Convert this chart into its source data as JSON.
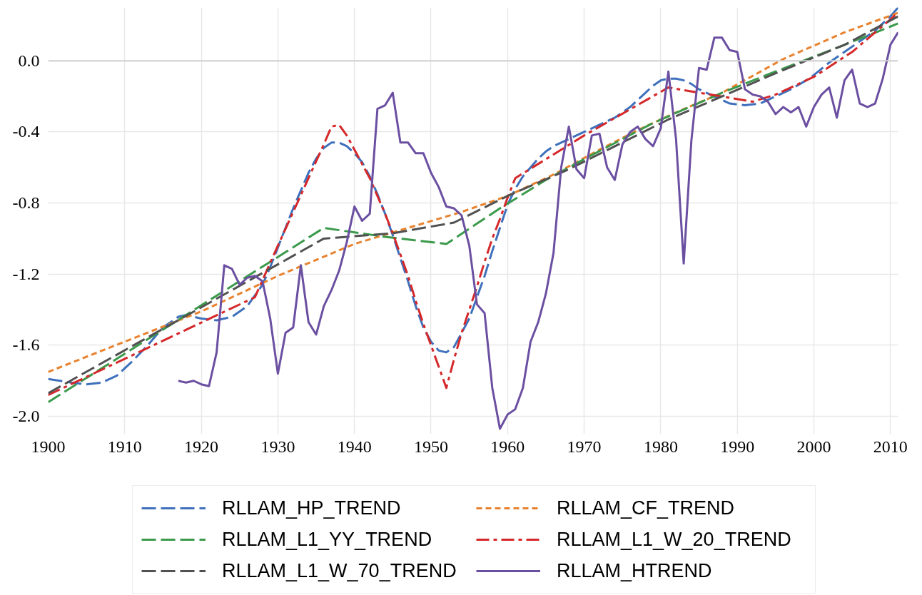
{
  "chart_data": {
    "type": "line",
    "xlim": [
      1900,
      2011
    ],
    "xticks": [
      1900,
      1910,
      1920,
      1930,
      1940,
      1950,
      1960,
      1970,
      1980,
      1990,
      2000,
      2010
    ],
    "ylim": [
      -2.1,
      0.3
    ],
    "yticks": [
      {
        "value": -2.0,
        "label": "-2.0"
      },
      -1.6,
      -1.2,
      -0.8,
      -0.4,
      {
        "value": 0,
        "label": "0.0"
      }
    ],
    "grid": true,
    "legend": "bottom",
    "ref_lines": [
      {
        "axis": "y",
        "value": 0,
        "color": "#d0d0d0"
      }
    ],
    "series": [
      {
        "name": "RLLAM_HP_TREND",
        "color": "#3f70bc",
        "line_style": "dashed",
        "x": [
          1900,
          1903,
          1905,
          1907,
          1909,
          1911,
          1913,
          1915,
          1917,
          1918,
          1920,
          1922,
          1924,
          1926,
          1928,
          1929,
          1930,
          1931,
          1932,
          1933,
          1934,
          1935,
          1936,
          1937,
          1938,
          1939,
          1940,
          1941,
          1942,
          1943,
          1944,
          1945,
          1946,
          1947,
          1948,
          1949,
          1950,
          1951,
          1952,
          1953,
          1954,
          1955,
          1956,
          1957,
          1958,
          1959,
          1960,
          1961,
          1962,
          1963,
          1964,
          1965,
          1966,
          1967,
          1968,
          1970,
          1972,
          1974,
          1976,
          1978,
          1979,
          1980,
          1981,
          1982,
          1983,
          1984,
          1985,
          1987,
          1989,
          1991,
          1993,
          1995,
          1997,
          1999,
          2000,
          2002,
          2004,
          2006,
          2008,
          2010,
          2011
        ],
        "values": [
          -1.79,
          -1.81,
          -1.82,
          -1.81,
          -1.77,
          -1.69,
          -1.6,
          -1.5,
          -1.44,
          -1.43,
          -1.45,
          -1.46,
          -1.44,
          -1.38,
          -1.26,
          -1.16,
          -1.05,
          -0.94,
          -0.83,
          -0.73,
          -0.63,
          -0.55,
          -0.49,
          -0.46,
          -0.46,
          -0.48,
          -0.52,
          -0.57,
          -0.65,
          -0.75,
          -0.86,
          -0.98,
          -1.11,
          -1.24,
          -1.38,
          -1.5,
          -1.58,
          -1.63,
          -1.64,
          -1.61,
          -1.53,
          -1.45,
          -1.33,
          -1.21,
          -1.07,
          -0.94,
          -0.81,
          -0.72,
          -0.65,
          -0.6,
          -0.55,
          -0.51,
          -0.48,
          -0.46,
          -0.44,
          -0.4,
          -0.36,
          -0.32,
          -0.26,
          -0.18,
          -0.14,
          -0.11,
          -0.1,
          -0.1,
          -0.11,
          -0.13,
          -0.16,
          -0.2,
          -0.24,
          -0.25,
          -0.24,
          -0.2,
          -0.16,
          -0.11,
          -0.08,
          -0.01,
          0.05,
          0.11,
          0.17,
          0.25,
          0.3
        ]
      },
      {
        "name": "RLLAM_CF_TREND",
        "color": "#e8822e",
        "line_style": "dotted",
        "x": [
          1900,
          1910,
          1920,
          1930,
          1940,
          1947,
          1954,
          1960,
          1966,
          1972,
          1977,
          1982,
          1988,
          1996,
          2004,
          2011
        ],
        "values": [
          -1.75,
          -1.58,
          -1.41,
          -1.21,
          -1.03,
          -0.94,
          -0.85,
          -0.76,
          -0.64,
          -0.5,
          -0.39,
          -0.29,
          -0.18,
          0.01,
          0.16,
          0.27
        ]
      },
      {
        "name": "RLLAM_L1_YY_TREND",
        "color": "#3b9a4b",
        "line_style": "dashed",
        "x": [
          1900,
          1936,
          1944,
          1952,
          1959,
          1965,
          1971,
          1979,
          1988,
          1995,
          2004,
          2011
        ],
        "values": [
          -1.92,
          -0.94,
          -0.99,
          -1.03,
          -0.83,
          -0.67,
          -0.53,
          -0.35,
          -0.18,
          -0.06,
          0.09,
          0.21
        ]
      },
      {
        "name": "RLLAM_L1_W_20_TREND",
        "color": "#d5282a",
        "line_style": "dashdot",
        "x": [
          1900,
          1927,
          1930,
          1932,
          1934,
          1936,
          1937,
          1938,
          1939,
          1940,
          1941,
          1942,
          1943,
          1944,
          1945,
          1946,
          1947,
          1948,
          1949,
          1950,
          1951,
          1952,
          1953,
          1954,
          1955,
          1956,
          1957,
          1958,
          1959,
          1960,
          1961,
          1970,
          1981,
          1992,
          1995,
          2000,
          2005,
          2011
        ],
        "values": [
          -1.88,
          -1.33,
          -1.04,
          -0.85,
          -0.66,
          -0.47,
          -0.37,
          -0.36,
          -0.42,
          -0.5,
          -0.58,
          -0.66,
          -0.76,
          -0.86,
          -0.97,
          -1.09,
          -1.21,
          -1.35,
          -1.48,
          -1.6,
          -1.72,
          -1.84,
          -1.68,
          -1.53,
          -1.4,
          -1.27,
          -1.13,
          -1.0,
          -0.89,
          -0.77,
          -0.66,
          -0.42,
          -0.15,
          -0.23,
          -0.19,
          -0.09,
          0.05,
          0.27
        ]
      },
      {
        "name": "RLLAM_L1_W_70_TREND",
        "color": "#515151",
        "line_style": "dashed",
        "x": [
          1900,
          1936,
          1945,
          1953,
          1960,
          1968,
          1981,
          1995,
          2004,
          2011
        ],
        "values": [
          -1.87,
          -1.0,
          -0.97,
          -0.91,
          -0.76,
          -0.61,
          -0.33,
          -0.07,
          0.09,
          0.25
        ]
      },
      {
        "name": "RLLAM_HTREND",
        "color": "#6b4fa1",
        "line_style": "solid",
        "x": [
          1917,
          1918,
          1919,
          1920,
          1921,
          1922,
          1923,
          1924,
          1925,
          1926,
          1927,
          1928,
          1929,
          1930,
          1931,
          1932,
          1933,
          1934,
          1935,
          1936,
          1937,
          1938,
          1939,
          1940,
          1941,
          1942,
          1943,
          1944,
          1945,
          1946,
          1947,
          1948,
          1949,
          1950,
          1951,
          1952,
          1953,
          1954,
          1955,
          1956,
          1957,
          1958,
          1959,
          1960,
          1961,
          1962,
          1963,
          1964,
          1965,
          1966,
          1967,
          1968,
          1969,
          1970,
          1971,
          1972,
          1973,
          1974,
          1975,
          1976,
          1977,
          1978,
          1979,
          1980,
          1981,
          1982,
          1983,
          1984,
          1985,
          1986,
          1987,
          1988,
          1989,
          1990,
          1991,
          1992,
          1993,
          1994,
          1995,
          1996,
          1997,
          1998,
          1999,
          2000,
          2001,
          2002,
          2003,
          2004,
          2005,
          2006,
          2007,
          2008,
          2009,
          2010,
          2011
        ],
        "values": [
          -1.8,
          -1.81,
          -1.8,
          -1.82,
          -1.83,
          -1.64,
          -1.15,
          -1.17,
          -1.26,
          -1.22,
          -1.21,
          -1.24,
          -1.45,
          -1.76,
          -1.53,
          -1.5,
          -1.15,
          -1.47,
          -1.54,
          -1.38,
          -1.29,
          -1.18,
          -1.02,
          -0.82,
          -0.9,
          -0.86,
          -0.27,
          -0.25,
          -0.18,
          -0.46,
          -0.46,
          -0.52,
          -0.52,
          -0.63,
          -0.71,
          -0.82,
          -0.83,
          -0.87,
          -1.04,
          -1.37,
          -1.42,
          -1.84,
          -2.07,
          -1.99,
          -1.96,
          -1.84,
          -1.58,
          -1.47,
          -1.31,
          -1.08,
          -0.6,
          -0.37,
          -0.61,
          -0.66,
          -0.42,
          -0.41,
          -0.6,
          -0.67,
          -0.47,
          -0.4,
          -0.37,
          -0.44,
          -0.48,
          -0.38,
          -0.06,
          -0.44,
          -1.14,
          -0.45,
          -0.04,
          -0.05,
          0.13,
          0.13,
          0.06,
          0.05,
          -0.16,
          -0.19,
          -0.2,
          -0.23,
          -0.3,
          -0.26,
          -0.29,
          -0.26,
          -0.37,
          -0.26,
          -0.19,
          -0.15,
          -0.32,
          -0.11,
          -0.05,
          -0.24,
          -0.26,
          -0.24,
          -0.1,
          0.09,
          0.16
        ]
      }
    ]
  }
}
